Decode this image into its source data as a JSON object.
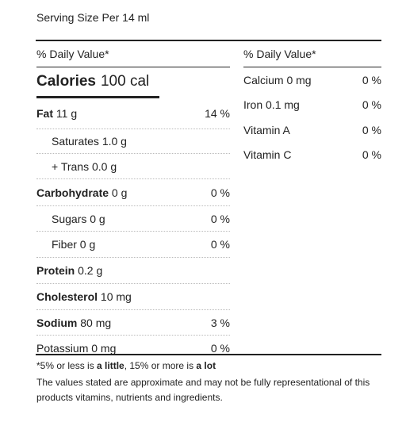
{
  "serving": "Serving Size Per 14 ml",
  "daily_value_header_left": "% Daily Value*",
  "daily_value_header_right": "% Daily Value*",
  "calories": {
    "label": "Calories",
    "value": "100 cal"
  },
  "nutrients": [
    {
      "name": "Fat",
      "amount": "11 g",
      "pct": "14 %",
      "bold": true,
      "indent": false
    },
    {
      "name": "Saturates",
      "amount": "1.0 g",
      "pct": "",
      "bold": false,
      "indent": true
    },
    {
      "name": "+ Trans",
      "amount": "0.0 g",
      "pct": "",
      "bold": false,
      "indent": true
    },
    {
      "name": "Carbohydrate",
      "amount": "0 g",
      "pct": "0 %",
      "bold": true,
      "indent": false
    },
    {
      "name": "Sugars",
      "amount": "0 g",
      "pct": "0 %",
      "bold": false,
      "indent": true
    },
    {
      "name": "Fiber",
      "amount": "0 g",
      "pct": "0 %",
      "bold": false,
      "indent": true
    },
    {
      "name": "Protein",
      "amount": "0.2 g",
      "pct": "",
      "bold": true,
      "indent": false
    },
    {
      "name": "Cholesterol",
      "amount": "10 mg",
      "pct": "",
      "bold": true,
      "indent": false
    },
    {
      "name": "Sodium",
      "amount": "80 mg",
      "pct": "3 %",
      "bold": true,
      "indent": false
    },
    {
      "name": "Potassium",
      "amount": "0 mg",
      "pct": "0 %",
      "bold": false,
      "indent": false
    }
  ],
  "vitamins": [
    {
      "name": "Calcium",
      "amount": "0 mg",
      "pct": "0 %"
    },
    {
      "name": "Iron",
      "amount": "0.1 mg",
      "pct": "0 %"
    },
    {
      "name": "Vitamin A",
      "amount": "",
      "pct": "0 %"
    },
    {
      "name": "Vitamin C",
      "amount": "",
      "pct": "0 %"
    }
  ],
  "footnote": {
    "prefix": "*5% or less is ",
    "little": "a little",
    "middle": ", 15% or more is ",
    "lot": "a lot"
  },
  "disclaimer": "The values stated are approximate and may not be fully representational of this products vitamins, nutrients and ingredients."
}
